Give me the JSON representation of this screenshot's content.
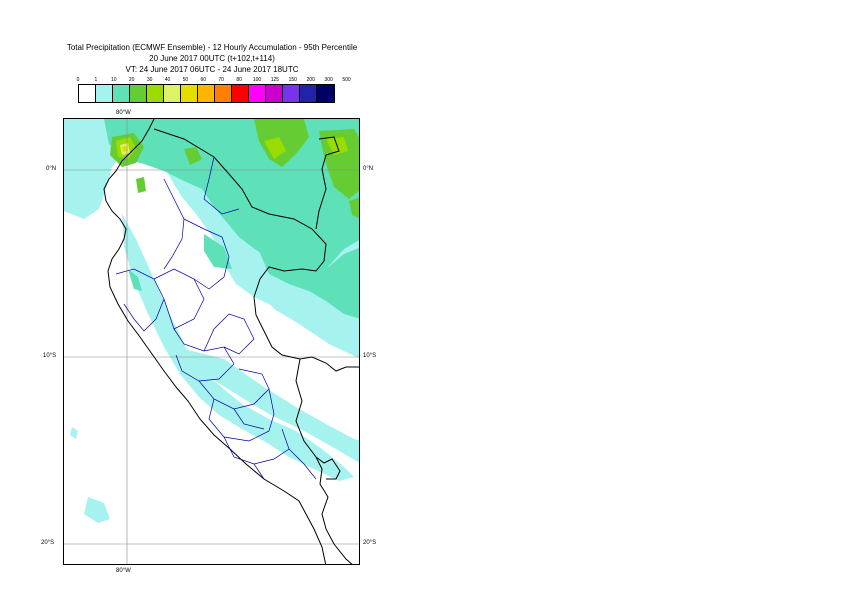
{
  "title": {
    "line1": "Total Precipitation (ECMWF Ensemble) - 12 Hourly Accumulation - 95th Percentile",
    "line2": "20 June 2017 00UTC (t+102,t+114)",
    "line3": "VT: 24 June 2017 06UTC - 24 June 2017 18UTC"
  },
  "legend": {
    "ticks": [
      "0",
      "1",
      "10",
      "20",
      "30",
      "40",
      "50",
      "60",
      "70",
      "80",
      "100",
      "125",
      "150",
      "200",
      "300",
      "500"
    ],
    "colors": [
      "#ffffff",
      "#a6f2ee",
      "#5ee0b8",
      "#66cc33",
      "#99dd00",
      "#ddf266",
      "#e6dd00",
      "#ffb400",
      "#ff7f00",
      "#ff0000",
      "#ff00ff",
      "#cc00cc",
      "#7733ee",
      "#2222aa",
      "#000066"
    ]
  },
  "axes": {
    "top_lon": "80°W",
    "bottom_lon": "80°W",
    "lat_0_left": "0°N",
    "lat_0_right": "0°N",
    "lat_10_left": "10°S",
    "lat_10_right": "10°S",
    "lat_20_left": "20°S",
    "lat_20_right": "20°S"
  }
}
